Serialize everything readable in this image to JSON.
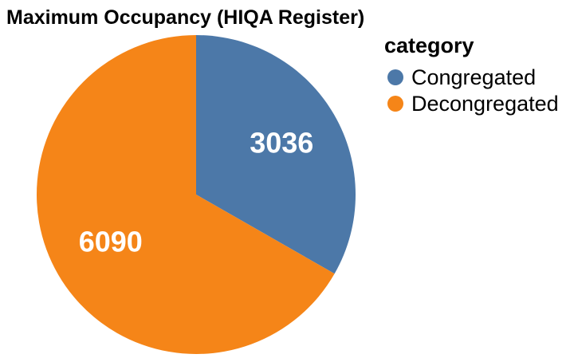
{
  "chart_data": {
    "type": "pie",
    "title": "Maximum Occupancy (HIQA Register)",
    "legend_title": "category",
    "legend_position": "right",
    "categories": [
      "Congregated",
      "Decongregated"
    ],
    "values": [
      3036,
      6090
    ],
    "value_labels": [
      "3036",
      "6090"
    ],
    "colors": [
      "#4c78a8",
      "#f58518"
    ]
  }
}
